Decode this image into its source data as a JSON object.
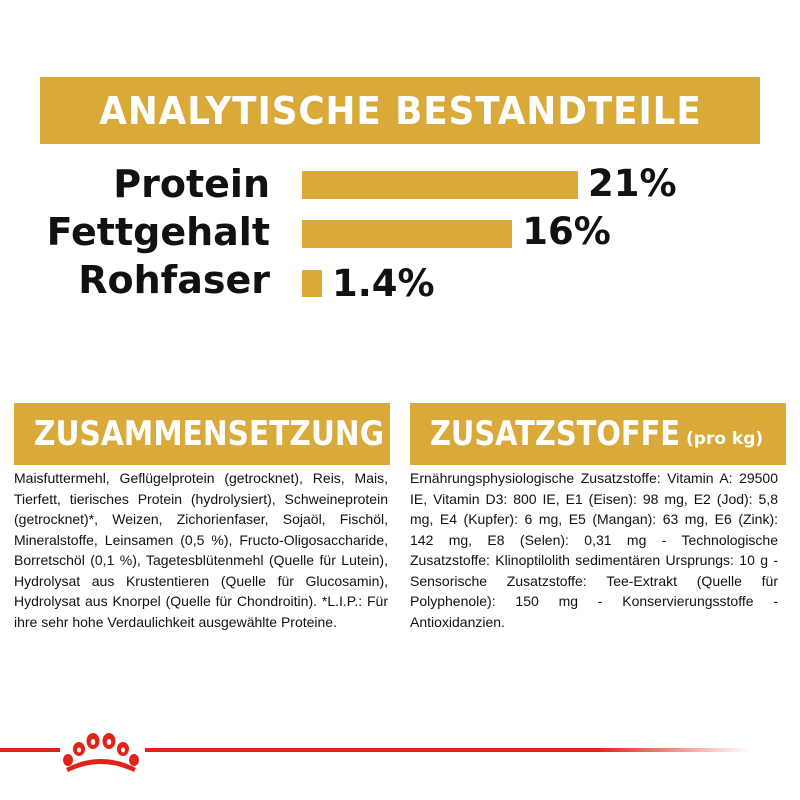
{
  "title": "ANALYTISCHE BESTANDTEILE",
  "nutrients": [
    {
      "label": "Protein",
      "value_label": "21%",
      "value": 21
    },
    {
      "label": "Fettgehalt",
      "value_label": "16%",
      "value": 16
    },
    {
      "label": "Rohfaser",
      "value_label": "1.4%",
      "value": 1.4
    }
  ],
  "composition": {
    "heading": "ZUSAMMENSETZUNG",
    "text": "Maisfuttermehl, Geflügelprotein (getrocknet), Reis, Mais, Tierfett, tierisches Protein (hydrolysiert), Schweineprotein (getrocknet)*, Weizen, Zichorienfaser, Sojaöl, Fischöl, Mineralstoffe, Leinsamen (0,5 %), Fructo-Oligosaccharide, Borretschöl (0,1 %), Tagetesblütenmehl (Quelle für Lutein), Hydrolysat aus Krustentieren (Quelle für Glucosamin), Hydrolysat aus Knorpel (Quelle für Chondroitin). *L.I.P.: Für ihre sehr hohe Verdaulichkeit ausgewählte Proteine."
  },
  "additives": {
    "heading": "ZUSATZSTOFFE",
    "heading_suffix": "(pro kg)",
    "text": "Ernährungsphysiologische Zusatzstoffe: Vitamin A: 29500 IE, Vitamin D3: 800 IE, E1 (Eisen): 98 mg, E2 (Jod): 5,8 mg, E4 (Kupfer): 6 mg, E5 (Mangan): 63 mg, E6 (Zink): 142 mg, E8 (Selen): 0,31 mg - Technologische Zusatzstoffe: Klinoptilolith sedimentären Ursprungs: 10 g - Sensorische Zusatzstoffe: Tee-Extrakt (Quelle für Polyphenole): 150 mg - Konservierungsstoffe - Antioxidanzien."
  },
  "colors": {
    "accent": "#d9a93a",
    "brand_red": "#e2231a"
  },
  "footer": {
    "logo": "royal-canin-crown-logo"
  }
}
